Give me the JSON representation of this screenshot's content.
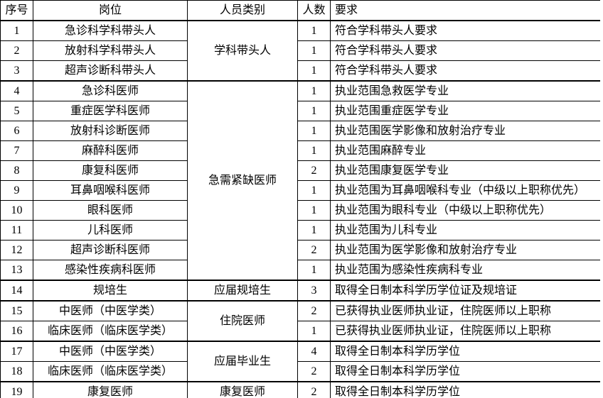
{
  "table": {
    "headers": {
      "seq": "序号",
      "position": "岗位",
      "category": "人员类别",
      "count": "人数",
      "requirement": "要求"
    },
    "groups": [
      {
        "category": "学科带头人",
        "rows": [
          {
            "seq": "1",
            "position": "急诊科学科带头人",
            "count": "1",
            "requirement": "符合学科带头人要求"
          },
          {
            "seq": "2",
            "position": "放射科学科带头人",
            "count": "1",
            "requirement": "符合学科带头人要求"
          },
          {
            "seq": "3",
            "position": "超声诊断科带头人",
            "count": "1",
            "requirement": "符合学科带头人要求"
          }
        ]
      },
      {
        "category": "急需紧缺医师",
        "rows": [
          {
            "seq": "4",
            "position": "急诊科医师",
            "count": "1",
            "requirement": "执业范围急救医学专业"
          },
          {
            "seq": "5",
            "position": "重症医学科医师",
            "count": "1",
            "requirement": "执业范围重症医学专业"
          },
          {
            "seq": "6",
            "position": "放射科诊断医师",
            "count": "1",
            "requirement": "执业范围医学影像和放射治疗专业"
          },
          {
            "seq": "7",
            "position": "麻醉科医师",
            "count": "1",
            "requirement": "执业范围麻醉专业"
          },
          {
            "seq": "8",
            "position": "康复科医师",
            "count": "2",
            "requirement": "执业范围康复医学专业"
          },
          {
            "seq": "9",
            "position": "耳鼻咽喉科医师",
            "count": "1",
            "requirement": "执业范围为耳鼻咽喉科专业（中级以上职称优先）"
          },
          {
            "seq": "10",
            "position": "眼科医师",
            "count": "1",
            "requirement": "执业范围为眼科专业（中级以上职称优先）"
          },
          {
            "seq": "11",
            "position": "儿科医师",
            "count": "1",
            "requirement": "执业范围为儿科专业"
          },
          {
            "seq": "12",
            "position": "超声诊断科医师",
            "count": "2",
            "requirement": "执业范围为医学影像和放射治疗专业"
          },
          {
            "seq": "13",
            "position": "感染性疾病科医师",
            "count": "1",
            "requirement": "执业范围为感染性疾病科专业"
          }
        ]
      },
      {
        "category": "应届规培生",
        "rows": [
          {
            "seq": "14",
            "position": "规培生",
            "count": "3",
            "requirement": "取得全日制本科学历学位证及规培证"
          }
        ]
      },
      {
        "category": "住院医师",
        "rows": [
          {
            "seq": "15",
            "position": "中医师（中医学类）",
            "count": "2",
            "requirement": "已获得执业医师执业证，住院医师以上职称"
          },
          {
            "seq": "16",
            "position": "临床医师（临床医学类）",
            "count": "1",
            "requirement": "已获得执业医师执业证，住院医师以上职称"
          }
        ]
      },
      {
        "category": "应届毕业生",
        "rows": [
          {
            "seq": "17",
            "position": "中医师（中医学类）",
            "count": "4",
            "requirement": "取得全日制本科学历学位"
          },
          {
            "seq": "18",
            "position": "临床医师（临床医学类）",
            "count": "2",
            "requirement": "取得全日制本科学历学位"
          }
        ]
      },
      {
        "category": "康复医师",
        "rows": [
          {
            "seq": "19",
            "position": "康复医师",
            "count": "2",
            "requirement": "取得全日制本科学历学位"
          }
        ]
      }
    ],
    "colors": {
      "border": "#000000",
      "text": "#000000",
      "background": "#ffffff"
    }
  }
}
